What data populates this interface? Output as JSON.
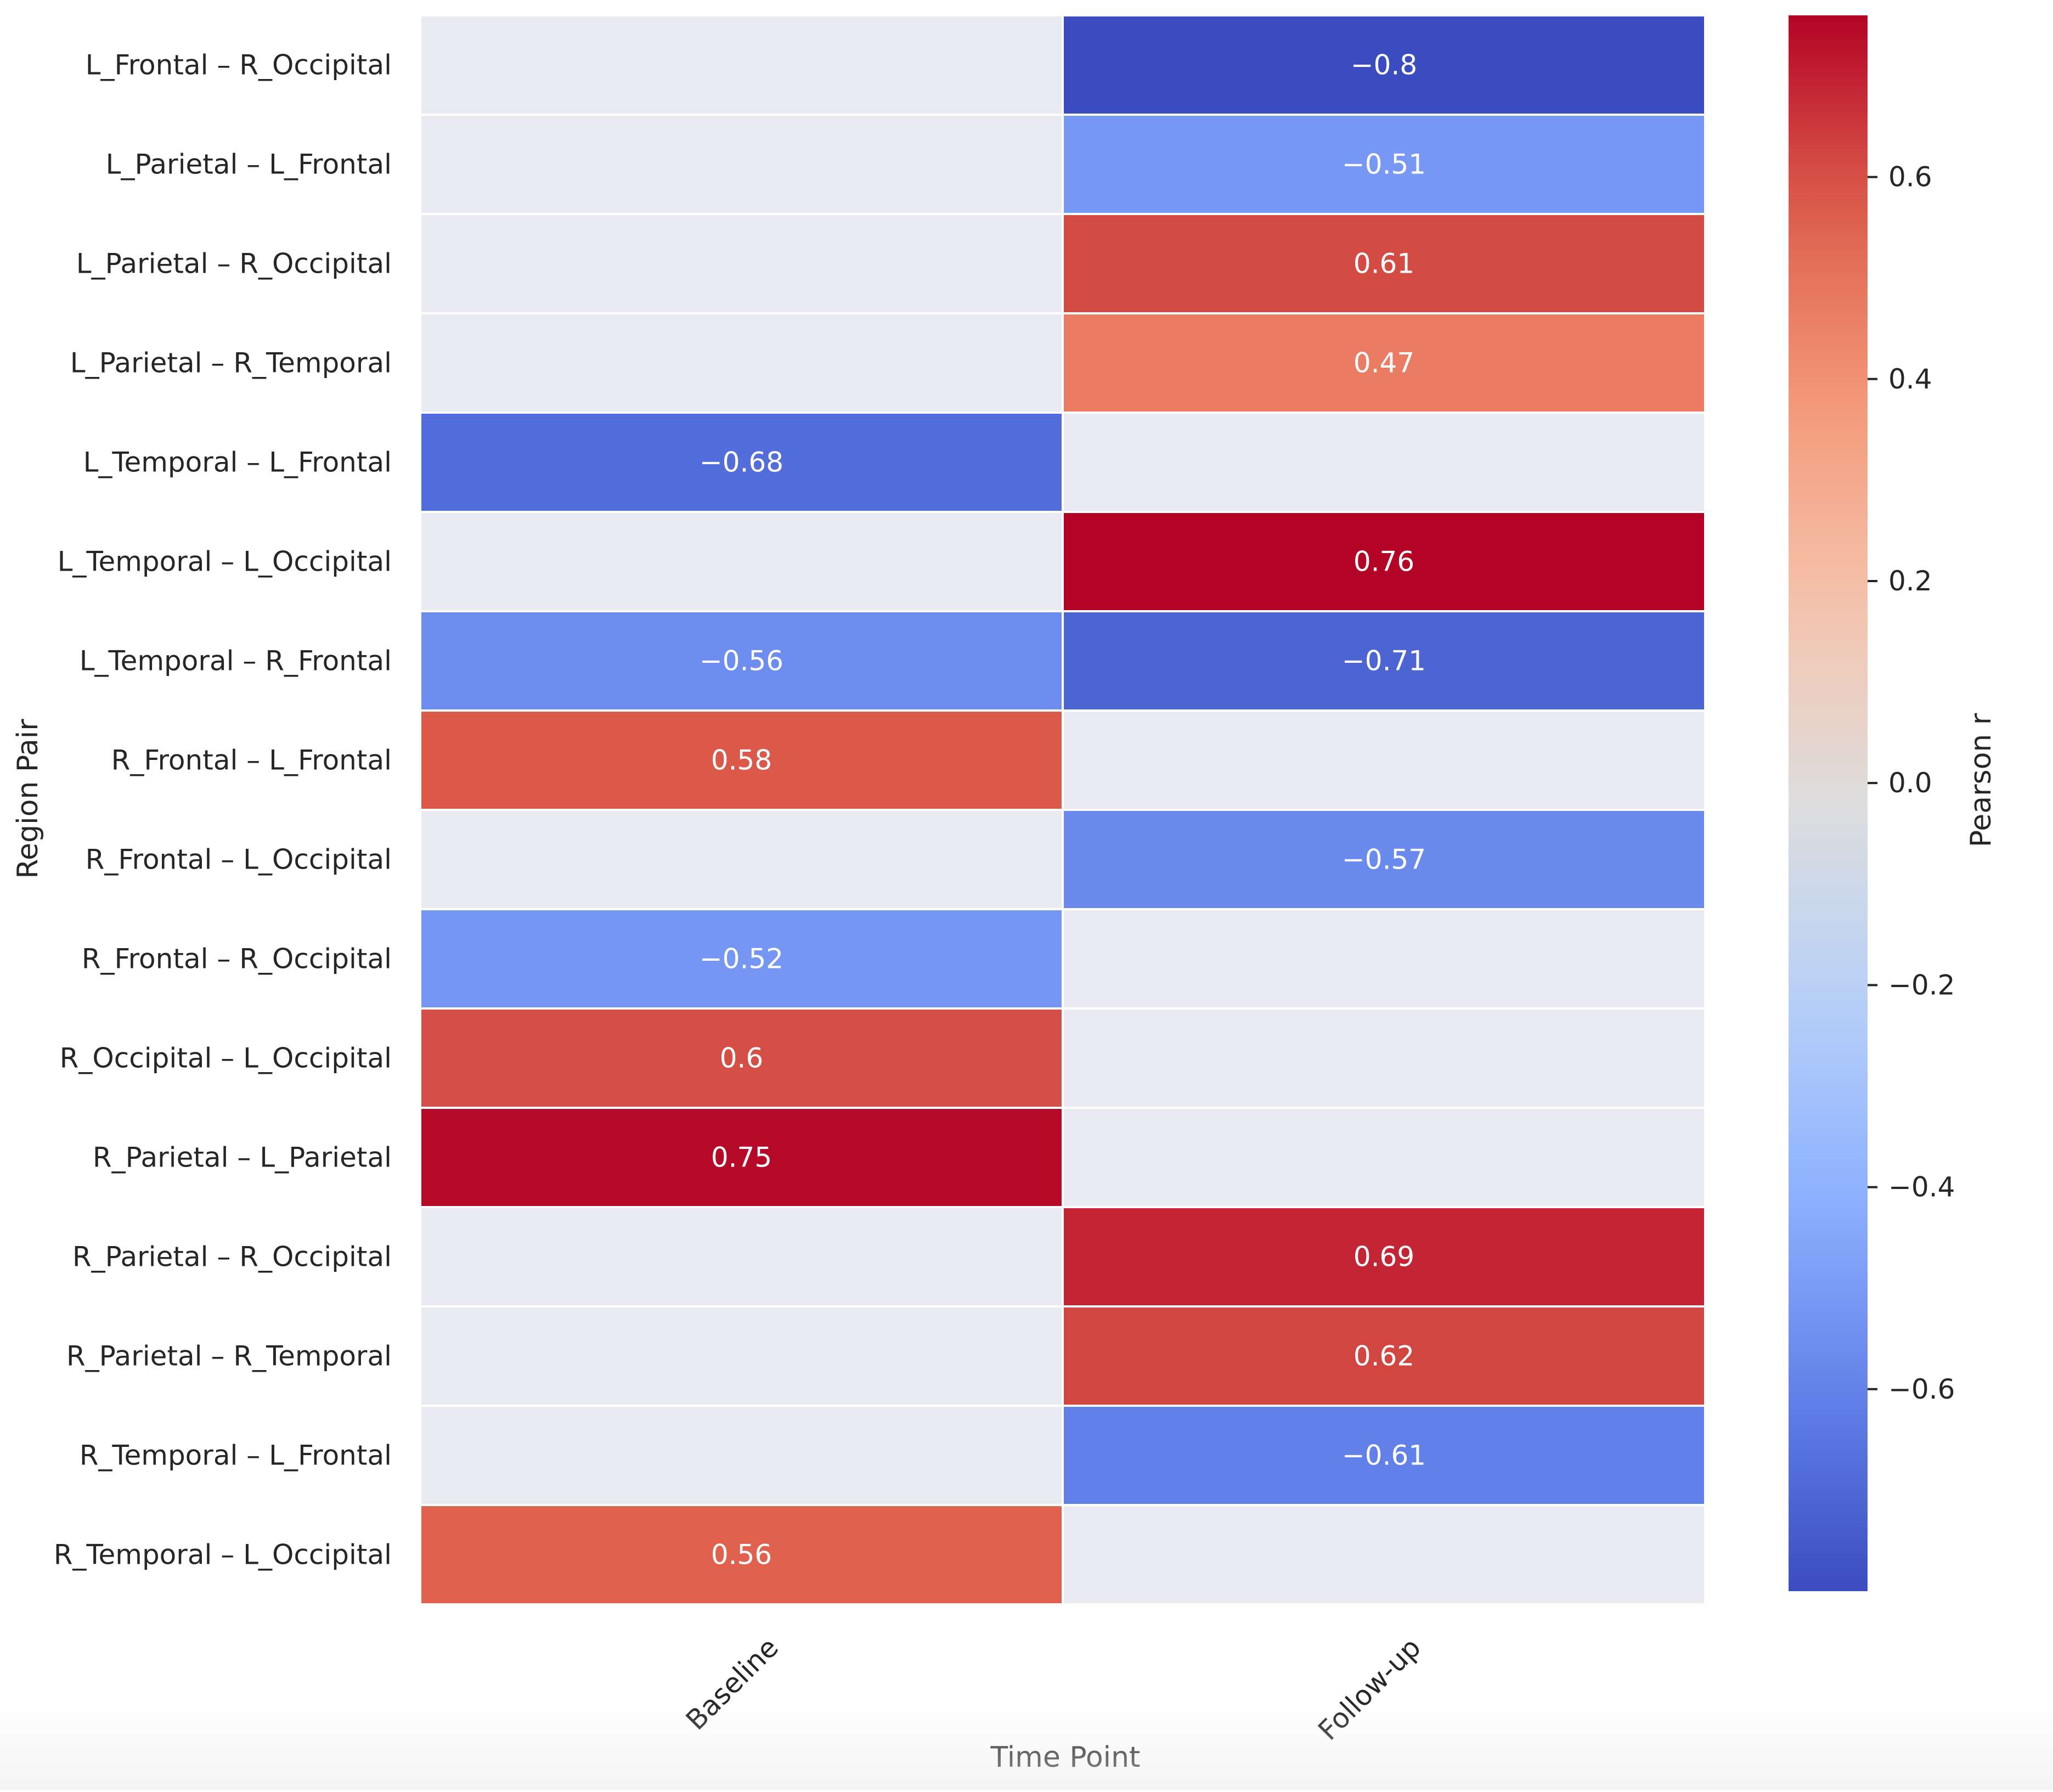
{
  "chart_data": {
    "type": "heatmap",
    "title": "",
    "xlabel": "Time Point",
    "ylabel": "Region Pair",
    "columns": [
      "Baseline",
      "Follow-up"
    ],
    "rows": [
      "L_Frontal – R_Occipital",
      "L_Parietal – L_Frontal",
      "L_Parietal – R_Occipital",
      "L_Parietal – R_Temporal",
      "L_Temporal – L_Frontal",
      "L_Temporal – L_Occipital",
      "L_Temporal – R_Frontal",
      "R_Frontal – L_Frontal",
      "R_Frontal – L_Occipital",
      "R_Frontal – R_Occipital",
      "R_Occipital – L_Occipital",
      "R_Parietal – L_Parietal",
      "R_Parietal – R_Occipital",
      "R_Parietal – R_Temporal",
      "R_Temporal – L_Frontal",
      "R_Temporal – L_Occipital"
    ],
    "values": [
      [
        null,
        -0.8
      ],
      [
        null,
        -0.51
      ],
      [
        null,
        0.61
      ],
      [
        null,
        0.47
      ],
      [
        -0.68,
        null
      ],
      [
        null,
        0.76
      ],
      [
        -0.56,
        -0.71
      ],
      [
        0.58,
        null
      ],
      [
        null,
        -0.57
      ],
      [
        -0.52,
        null
      ],
      [
        0.6,
        null
      ],
      [
        0.75,
        null
      ],
      [
        null,
        0.69
      ],
      [
        null,
        0.62
      ],
      [
        null,
        -0.61
      ],
      [
        0.56,
        null
      ]
    ],
    "annotations": [
      [
        "",
        "−0.8"
      ],
      [
        "",
        "−0.51"
      ],
      [
        "",
        "0.61"
      ],
      [
        "",
        "0.47"
      ],
      [
        "−0.68",
        ""
      ],
      [
        "",
        "0.76"
      ],
      [
        "−0.56",
        "−0.71"
      ],
      [
        "0.58",
        ""
      ],
      [
        "",
        "−0.57"
      ],
      [
        "−0.52",
        ""
      ],
      [
        "0.6",
        ""
      ],
      [
        "0.75",
        ""
      ],
      [
        "",
        "0.69"
      ],
      [
        "",
        "0.62"
      ],
      [
        "",
        "−0.61"
      ],
      [
        "0.56",
        ""
      ]
    ],
    "colorbar": {
      "label": "Pearson r",
      "colormap": "coolwarm",
      "vmin": -0.8,
      "vmax": 0.76,
      "ticks": [
        0.6,
        0.4,
        0.2,
        0.0,
        -0.2,
        -0.4,
        -0.6
      ],
      "tick_labels": [
        "0.6",
        "0.4",
        "0.2",
        "0.0",
        "−0.2",
        "−0.4",
        "−0.6"
      ]
    },
    "missing_color": "#eaeaf2",
    "grid_line_color": "#ffffff"
  }
}
